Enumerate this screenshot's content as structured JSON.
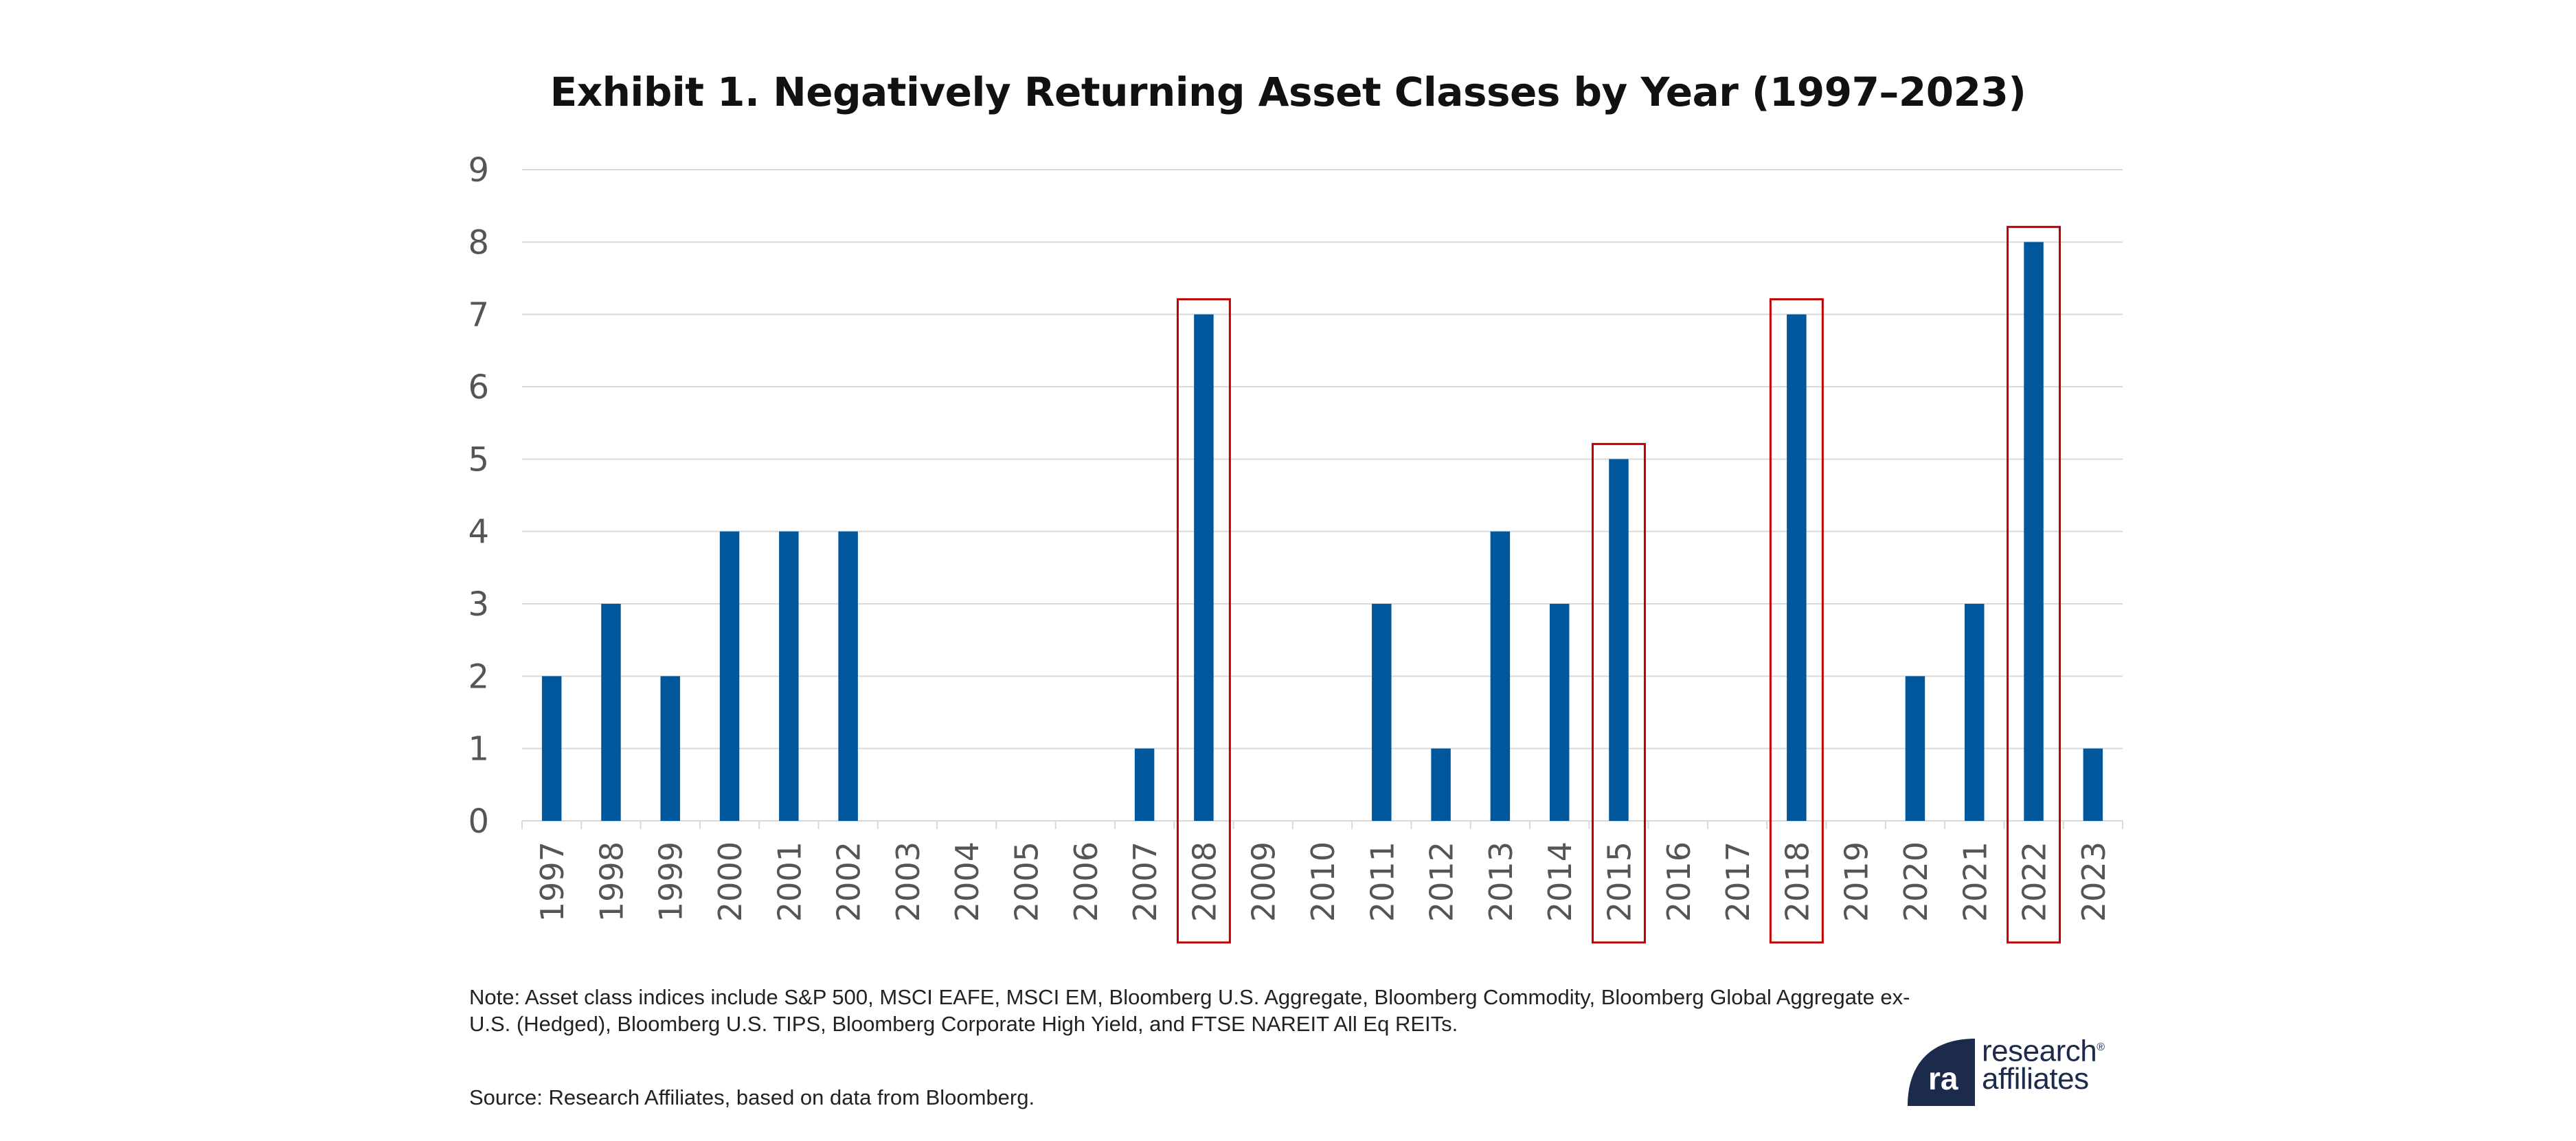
{
  "chart_data": {
    "type": "bar",
    "title": "Exhibit 1. Negatively Returning Asset Classes by Year (1997–2023)",
    "categories": [
      "1997",
      "1998",
      "1999",
      "2000",
      "2001",
      "2002",
      "2003",
      "2004",
      "2005",
      "2006",
      "2007",
      "2008",
      "2009",
      "2010",
      "2011",
      "2012",
      "2013",
      "2014",
      "2015",
      "2016",
      "2017",
      "2018",
      "2019",
      "2020",
      "2021",
      "2022",
      "2023"
    ],
    "values": [
      2,
      3,
      2,
      4,
      4,
      4,
      0,
      0,
      0,
      0,
      1,
      7,
      0,
      0,
      3,
      1,
      4,
      3,
      5,
      0,
      0,
      7,
      0,
      2,
      3,
      8,
      1
    ],
    "highlighted": [
      "2008",
      "2015",
      "2018",
      "2022"
    ],
    "ylim": [
      0,
      9
    ],
    "yticks": [
      "0",
      "1",
      "2",
      "3",
      "4",
      "5",
      "6",
      "7",
      "8",
      "9"
    ],
    "xlabel": "",
    "ylabel": "",
    "grid": true,
    "colors": {
      "bar": "#00579c",
      "highlight_box": "#c00000",
      "grid": "#d9d9d9"
    }
  },
  "note": "Note: Asset class indices include S&P 500, MSCI EAFE, MSCI EM, Bloomberg U.S. Aggregate, Bloomberg Commodity, Bloomberg Global Aggregate ex-U.S. (Hedged), Bloomberg U.S. TIPS, Bloomberg Corporate High Yield, and FTSE NAREIT All Eq REITs.",
  "source": "Source: Research Affiliates, based on data from Bloomberg.",
  "logo": {
    "line1": "research",
    "line2": "affiliates",
    "mark": "®",
    "color": "#1c2b4b"
  }
}
